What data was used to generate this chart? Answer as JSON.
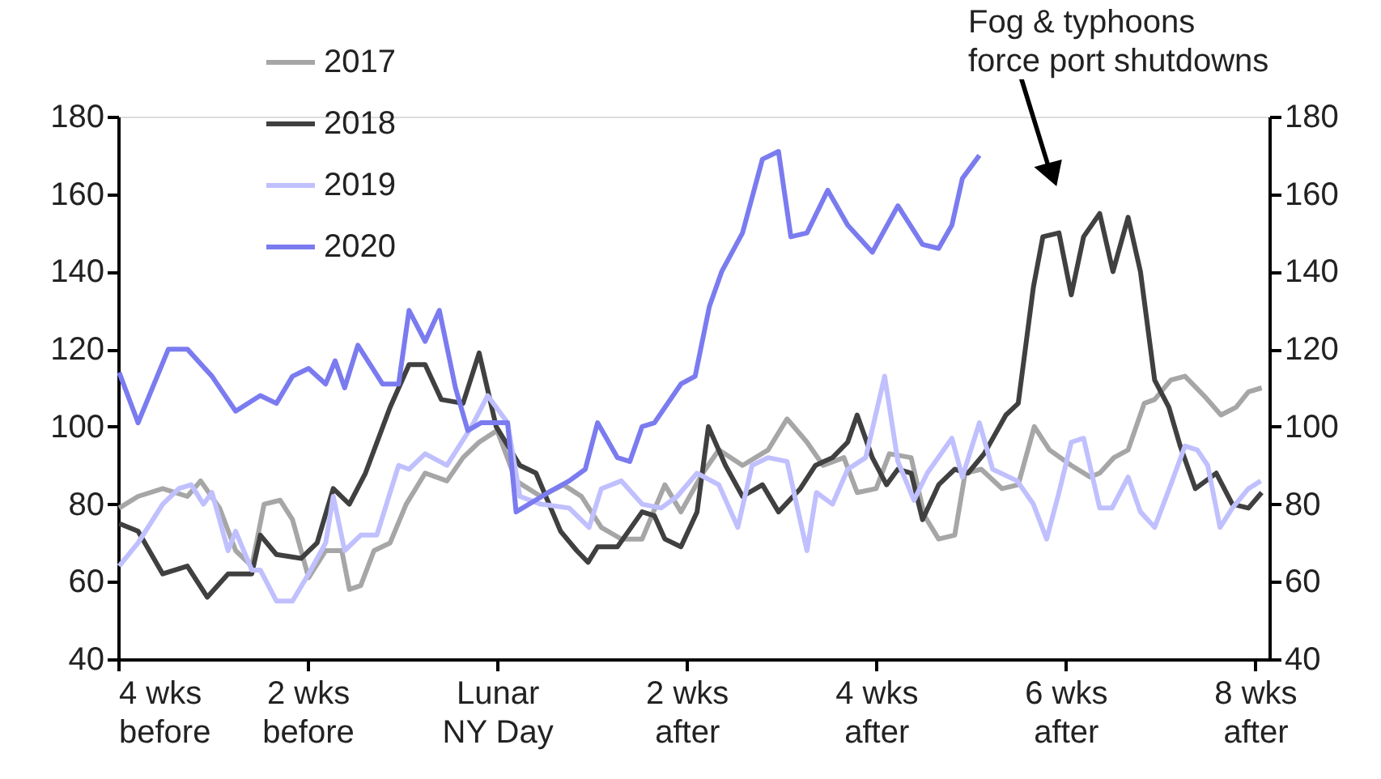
{
  "chart_data": {
    "type": "line",
    "annotations": [
      "Fog & typhoons force port shutdowns"
    ],
    "xlim": [
      -4,
      8.15
    ],
    "xticks": [
      {
        "value": -4,
        "label": "4 wks\nbefore"
      },
      {
        "value": -2,
        "label": "2 wks\nbefore"
      },
      {
        "value": 0,
        "label": "Lunar\nNY Day"
      },
      {
        "value": 2,
        "label": "2 wks\nafter"
      },
      {
        "value": 4,
        "label": "4 wks\nafter"
      },
      {
        "value": 6,
        "label": "6 wks\nafter"
      },
      {
        "value": 8,
        "label": "8 wks\nafter"
      }
    ],
    "ylim": [
      40,
      180
    ],
    "yticks": [
      40,
      60,
      80,
      100,
      120,
      140,
      160,
      180
    ],
    "y2lim": [
      40,
      180
    ],
    "y2ticks": [
      40,
      60,
      80,
      100,
      120,
      140,
      160,
      180
    ],
    "grid": false,
    "legend": "top left",
    "line_style": "solid",
    "marker": "none",
    "series": [
      {
        "name": "2017",
        "color": "#a6a6a6",
        "x": [
          -3.99,
          -3.79,
          -3.53,
          -3.27,
          -3.13,
          -2.93,
          -2.76,
          -2.59,
          -2.46,
          -2.29,
          -2.16,
          -1.99,
          -1.81,
          -1.64,
          -1.56,
          -1.44,
          -1.3,
          -1.13,
          -0.96,
          -0.76,
          -0.53,
          -0.36,
          -0.19,
          0,
          0.2,
          0.46,
          0.7,
          0.89,
          1.1,
          1.31,
          1.53,
          1.77,
          1.94,
          2.17,
          2.34,
          2.59,
          2.86,
          3.06,
          3.27,
          3.44,
          3.66,
          3.8,
          4,
          4.14,
          4.37,
          4.51,
          4.66,
          4.83,
          4.94,
          5.11,
          5.33,
          5.5,
          5.67,
          5.83,
          6.06,
          6.26,
          6.36,
          6.51,
          6.66,
          6.83,
          6.94,
          7.11,
          7.26,
          7.46,
          7.64,
          7.8,
          7.93,
          8.07
        ],
        "values": [
          79,
          82,
          84,
          82,
          86,
          79,
          68,
          64,
          80,
          81,
          76,
          61,
          68,
          68,
          58,
          59,
          68,
          70,
          80,
          88,
          86,
          92,
          96,
          99,
          86,
          82,
          85,
          82,
          74,
          71,
          71,
          85,
          78,
          88,
          94,
          90,
          94,
          102,
          96,
          90,
          92,
          83,
          84,
          93,
          92,
          77,
          71,
          72,
          88,
          89,
          84,
          85,
          100,
          94,
          90,
          87,
          88,
          92,
          94,
          106,
          107,
          112,
          113,
          108,
          103,
          105,
          109,
          110
        ]
      },
      {
        "name": "2018",
        "color": "#404040",
        "x": [
          -3.99,
          -3.79,
          -3.53,
          -3.27,
          -3.06,
          -2.84,
          -2.59,
          -2.5,
          -2.33,
          -2.07,
          -1.9,
          -1.73,
          -1.56,
          -1.39,
          -1.13,
          -0.93,
          -0.76,
          -0.59,
          -0.36,
          -0.19,
          -0.01,
          0.24,
          0.41,
          0.67,
          0.84,
          0.96,
          1.06,
          1.27,
          1.53,
          1.66,
          1.77,
          1.94,
          2.11,
          2.23,
          2.41,
          2.59,
          2.8,
          2.97,
          3.2,
          3.36,
          3.54,
          3.7,
          3.8,
          3.96,
          4.11,
          4.23,
          4.37,
          4.49,
          4.66,
          4.83,
          4.97,
          5.14,
          5.37,
          5.5,
          5.66,
          5.76,
          5.93,
          6.06,
          6.19,
          6.36,
          6.5,
          6.66,
          6.79,
          6.94,
          7.09,
          7.21,
          7.37,
          7.59,
          7.76,
          7.93,
          8.07
        ],
        "values": [
          75,
          73,
          62,
          64,
          56,
          62,
          62,
          72,
          67,
          66,
          70,
          84,
          80,
          88,
          105,
          116,
          116,
          107,
          106,
          119,
          100,
          90,
          88,
          73,
          68,
          65,
          69,
          69,
          78,
          77,
          71,
          69,
          78,
          100,
          90,
          82,
          85,
          78,
          84,
          90,
          92,
          96,
          103,
          92,
          85,
          89,
          88,
          76,
          85,
          89,
          88,
          93,
          103,
          106,
          136,
          149,
          150,
          134,
          149,
          155,
          140,
          154,
          140,
          112,
          105,
          95,
          84,
          88,
          80,
          79,
          83
        ]
      },
      {
        "name": "2019",
        "color": "#c0c0ff",
        "x": [
          -3.99,
          -3.79,
          -3.53,
          -3.36,
          -3.23,
          -3.1,
          -3.01,
          -2.84,
          -2.76,
          -2.59,
          -2.5,
          -2.33,
          -2.16,
          -1.99,
          -1.81,
          -1.73,
          -1.61,
          -1.44,
          -1.27,
          -1.04,
          -0.93,
          -0.76,
          -0.53,
          -0.27,
          -0.1,
          0.11,
          0.24,
          0.46,
          0.76,
          0.97,
          1.1,
          1.31,
          1.53,
          1.73,
          1.9,
          2.11,
          2.34,
          2.54,
          2.69,
          2.86,
          3.06,
          3.27,
          3.37,
          3.54,
          3.7,
          3.89,
          4.09,
          4.23,
          4.4,
          4.54,
          4.8,
          4.91,
          5.09,
          5.23,
          5.49,
          5.66,
          5.8,
          5.93,
          6.06,
          6.19,
          6.36,
          6.49,
          6.66,
          6.79,
          6.94,
          7.11,
          7.26,
          7.39,
          7.5,
          7.63,
          7.76,
          7.93,
          8.06
        ],
        "values": [
          64,
          70,
          80,
          84,
          85,
          80,
          83,
          68,
          73,
          63,
          63,
          55,
          55,
          62,
          70,
          82,
          68,
          72,
          72,
          90,
          89,
          93,
          90,
          100,
          108,
          101,
          82,
          80,
          79,
          74,
          84,
          86,
          80,
          79,
          82,
          88,
          85,
          74,
          90,
          92,
          91,
          68,
          83,
          80,
          89,
          92,
          113,
          91,
          81,
          88,
          97,
          87,
          101,
          89,
          86,
          80,
          71,
          83,
          96,
          97,
          79,
          79,
          87,
          78,
          74,
          85,
          95,
          94,
          90,
          74,
          79,
          84,
          86
        ]
      },
      {
        "name": "2020",
        "color": "#7b7bf0",
        "x": [
          -3.99,
          -3.79,
          -3.47,
          -3.27,
          -3.01,
          -2.76,
          -2.5,
          -2.33,
          -2.16,
          -1.99,
          -1.81,
          -1.71,
          -1.61,
          -1.47,
          -1.21,
          -1.04,
          -0.93,
          -0.76,
          -0.61,
          -0.44,
          -0.31,
          -0.17,
          0.11,
          0.2,
          0.54,
          0.76,
          0.93,
          1.06,
          1.27,
          1.4,
          1.53,
          1.66,
          1.94,
          2.09,
          2.24,
          2.37,
          2.59,
          2.8,
          2.97,
          3.1,
          3.27,
          3.49,
          3.7,
          3.96,
          4.23,
          4.49,
          4.66,
          4.8,
          4.91,
          5.09
        ],
        "values": [
          114,
          101,
          120,
          120,
          113,
          104,
          108,
          106,
          113,
          115,
          111,
          117,
          110,
          121,
          111,
          111,
          130,
          122,
          130,
          110,
          99,
          101,
          101,
          78,
          83,
          86,
          89,
          101,
          92,
          91,
          100,
          101,
          111,
          113,
          131,
          140,
          150,
          169,
          171,
          149,
          150,
          161,
          152,
          145,
          157,
          147,
          146,
          152,
          164,
          170
        ]
      }
    ]
  }
}
